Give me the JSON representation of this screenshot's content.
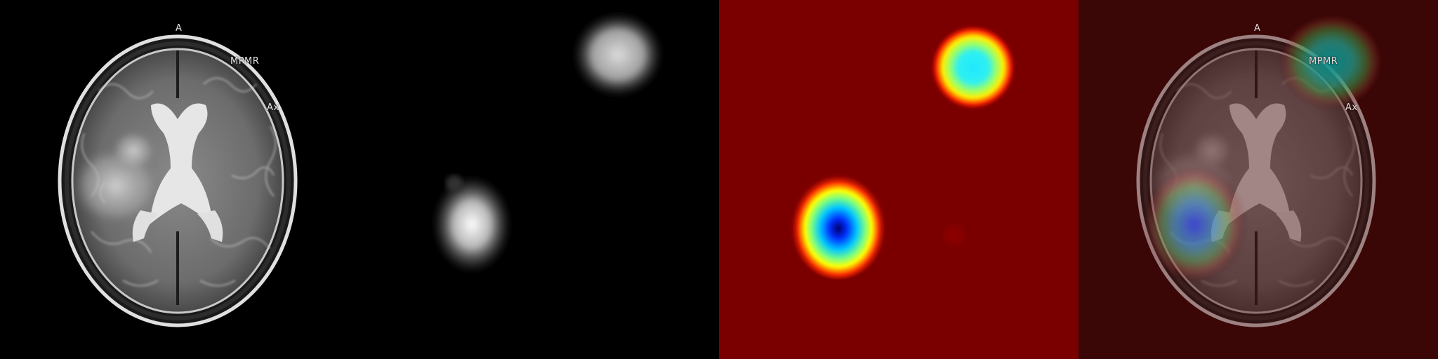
{
  "figure": {
    "panels": [
      {
        "id": "mri-slice",
        "labels": {
          "anterior": "A",
          "sequence": "MPMR",
          "plane": "Ax"
        }
      },
      {
        "id": "grayscale-activation-map"
      },
      {
        "id": "jet-heatmap"
      },
      {
        "id": "heatmap-overlay",
        "labels": {
          "anterior": "A",
          "sequence": "MPMR",
          "plane": "Ax"
        }
      }
    ],
    "colors": {
      "background": "#000000",
      "heatmap_base": "#7a0000",
      "overlay_tint": "#2a0000"
    }
  }
}
